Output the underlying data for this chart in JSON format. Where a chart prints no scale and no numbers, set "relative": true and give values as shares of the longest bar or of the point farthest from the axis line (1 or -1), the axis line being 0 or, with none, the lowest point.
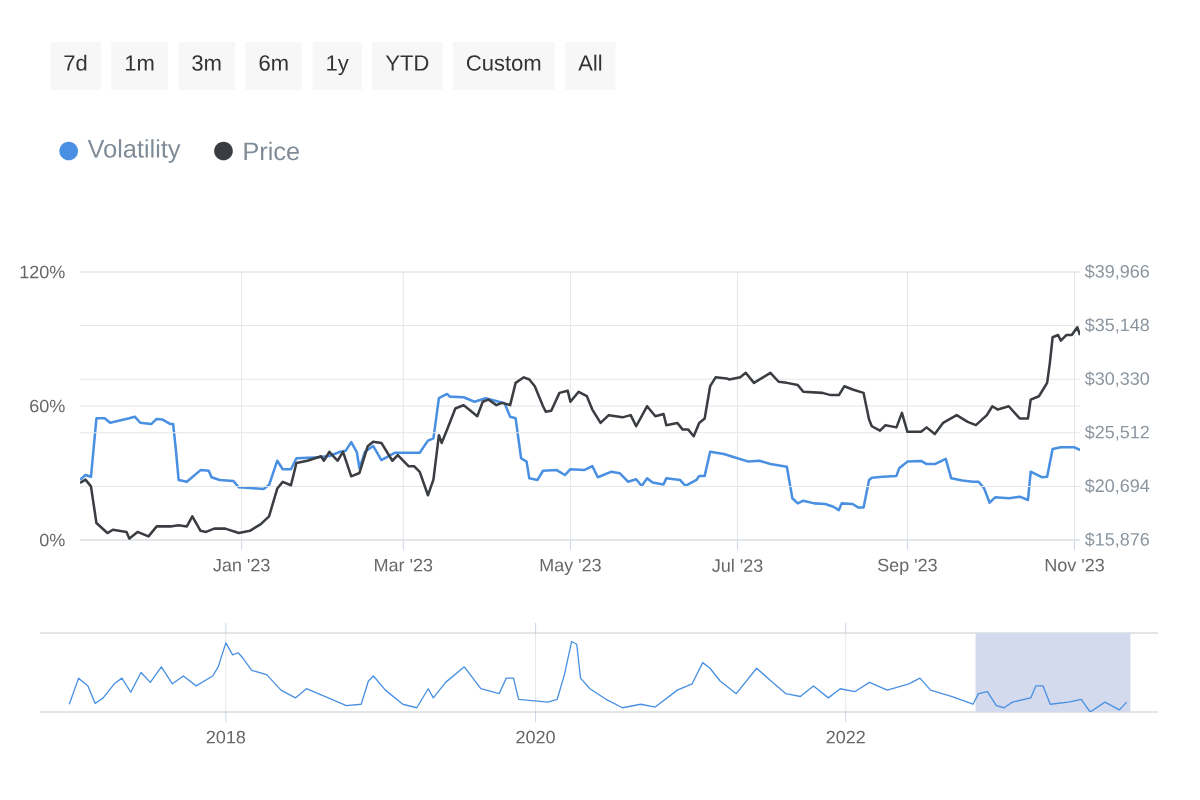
{
  "chart_data": [
    {
      "type": "line",
      "annotations": [
        "7d",
        "1m",
        "3m",
        "6m",
        "1y",
        "YTD",
        "Custom",
        "All"
      ],
      "legend": "top left",
      "grid": true,
      "xlim": [
        "2022-11-03",
        "2023-11-03"
      ],
      "xticks": [
        {
          "value": "2023-01-01",
          "label": "Jan '23"
        },
        {
          "value": "2023-03-01",
          "label": "Mar '23"
        },
        {
          "value": "2023-05-01",
          "label": "May '23"
        },
        {
          "value": "2023-07-01",
          "label": "Jul '23"
        },
        {
          "value": "2023-09-01",
          "label": "Sep '23"
        },
        {
          "value": "2023-11-01",
          "label": "Nov '23"
        }
      ],
      "ylim": [
        0,
        120
      ],
      "yticks": [
        {
          "value": 0,
          "label": "0%"
        },
        {
          "value": 60,
          "label": "60%"
        },
        {
          "value": 120,
          "label": "120%"
        }
      ],
      "y2lim": [
        15876,
        39966
      ],
      "y2ticks": [
        {
          "value": 15876,
          "label": "$15,876"
        },
        {
          "value": 20694,
          "label": "$20,694"
        },
        {
          "value": 25512,
          "label": "$25,512"
        },
        {
          "value": 30330,
          "label": "$30,330"
        },
        {
          "value": 35148,
          "label": "$35,148"
        },
        {
          "value": 39966,
          "label": "$39,966"
        }
      ],
      "series": [
        {
          "name": "Volatility",
          "color": "#4a90e2",
          "x": [
            "2022-11-03",
            "2022-11-05",
            "2022-11-07",
            "2022-11-09",
            "2022-11-12",
            "2022-11-14",
            "2022-11-21",
            "2022-11-23",
            "2022-11-25",
            "2022-11-29",
            "2022-12-01",
            "2022-12-03",
            "2022-12-06",
            "2022-12-07",
            "2022-12-08",
            "2022-12-09",
            "2022-12-12",
            "2022-12-17",
            "2022-12-20",
            "2022-12-21",
            "2022-12-24",
            "2022-12-29",
            "2022-12-31",
            "2023-01-04",
            "2023-01-09",
            "2023-01-11",
            "2023-01-14",
            "2023-01-16",
            "2023-01-19",
            "2023-01-21",
            "2023-01-29",
            "2023-02-02",
            "2023-02-06",
            "2023-02-08",
            "2023-02-10",
            "2023-02-12",
            "2023-02-13",
            "2023-02-15",
            "2023-02-18",
            "2023-02-21",
            "2023-02-26",
            "2023-03-07",
            "2023-03-10",
            "2023-03-12",
            "2023-03-14",
            "2023-03-17",
            "2023-03-18",
            "2023-03-23",
            "2023-03-27",
            "2023-03-31",
            "2023-04-07",
            "2023-04-09",
            "2023-04-11",
            "2023-04-13",
            "2023-04-15",
            "2023-04-16",
            "2023-04-19",
            "2023-04-21",
            "2023-04-26",
            "2023-04-29",
            "2023-05-01",
            "2023-05-06",
            "2023-05-09",
            "2023-05-11",
            "2023-05-16",
            "2023-05-19",
            "2023-05-22",
            "2023-05-25",
            "2023-05-27",
            "2023-05-29",
            "2023-05-31",
            "2023-06-04",
            "2023-06-05",
            "2023-06-10",
            "2023-06-12",
            "2023-06-16",
            "2023-06-17",
            "2023-06-19",
            "2023-06-21",
            "2023-06-26",
            "2023-07-01",
            "2023-07-05",
            "2023-07-09",
            "2023-07-13",
            "2023-07-19",
            "2023-07-21",
            "2023-07-23",
            "2023-07-25",
            "2023-07-29",
            "2023-08-02",
            "2023-08-05",
            "2023-08-07",
            "2023-08-08",
            "2023-08-12",
            "2023-08-14",
            "2023-08-16",
            "2023-08-18",
            "2023-08-19",
            "2023-08-23",
            "2023-08-28",
            "2023-08-29",
            "2023-09-01",
            "2023-09-06",
            "2023-09-08",
            "2023-09-11",
            "2023-09-15",
            "2023-09-17",
            "2023-09-21",
            "2023-09-25",
            "2023-09-27",
            "2023-09-29",
            "2023-10-01",
            "2023-10-03",
            "2023-10-08",
            "2023-10-12",
            "2023-10-15",
            "2023-10-16",
            "2023-10-20",
            "2023-10-22",
            "2023-10-24",
            "2023-10-27",
            "2023-11-01",
            "2023-11-03"
          ],
          "values": [
            26.9,
            29.1,
            28.3,
            54.5,
            54.5,
            52.5,
            54.5,
            55.2,
            52.5,
            51.9,
            54.2,
            54.0,
            51.9,
            51.9,
            40.3,
            26.9,
            26.1,
            31.3,
            31.0,
            28.1,
            26.9,
            26.4,
            23.6,
            23.3,
            22.8,
            24.6,
            35.5,
            31.7,
            31.7,
            36.6,
            37.0,
            37.6,
            39.5,
            40.0,
            43.8,
            39.5,
            32.1,
            39.5,
            42.1,
            35.8,
            39.1,
            39.1,
            44.5,
            45.5,
            63.5,
            65.4,
            64.2,
            63.9,
            61.9,
            63.5,
            61.2,
            55.2,
            54.5,
            36.6,
            35.1,
            27.6,
            26.9,
            31.0,
            31.3,
            29.1,
            31.7,
            31.3,
            33.1,
            28.1,
            30.6,
            29.9,
            26.1,
            27.2,
            24.2,
            27.6,
            25.7,
            24.9,
            27.6,
            26.9,
            24.2,
            26.9,
            28.7,
            28.7,
            39.5,
            38.5,
            36.6,
            35.1,
            35.5,
            34.0,
            32.8,
            18.7,
            16.4,
            17.6,
            16.4,
            16.1,
            14.9,
            13.4,
            16.4,
            16.1,
            14.6,
            14.6,
            26.9,
            27.9,
            28.3,
            28.7,
            32.1,
            35.1,
            35.4,
            34.0,
            34.0,
            36.3,
            27.6,
            26.6,
            26.1,
            26.1,
            23.1,
            16.7,
            19.1,
            18.7,
            19.4,
            17.9,
            30.6,
            28.1,
            28.3,
            40.7,
            41.5,
            41.5,
            40.3
          ]
        },
        {
          "name": "Price",
          "color": "#3a3d42",
          "axis": "y2",
          "x": [
            "2022-11-03",
            "2022-11-05",
            "2022-11-07",
            "2022-11-09",
            "2022-11-13",
            "2022-11-15",
            "2022-11-20",
            "2022-11-21",
            "2022-11-24",
            "2022-11-28",
            "2022-12-01",
            "2022-12-06",
            "2022-12-09",
            "2022-12-12",
            "2022-12-14",
            "2022-12-17",
            "2022-12-19",
            "2022-12-22",
            "2022-12-26",
            "2022-12-31",
            "2023-01-04",
            "2023-01-08",
            "2023-01-11",
            "2023-01-14",
            "2023-01-16",
            "2023-01-19",
            "2023-01-21",
            "2023-01-25",
            "2023-01-30",
            "2023-01-31",
            "2023-02-02",
            "2023-02-05",
            "2023-02-07",
            "2023-02-10",
            "2023-02-13",
            "2023-02-16",
            "2023-02-18",
            "2023-02-21",
            "2023-02-25",
            "2023-02-27",
            "2023-03-03",
            "2023-03-05",
            "2023-03-07",
            "2023-03-10",
            "2023-03-12",
            "2023-03-14",
            "2023-03-15",
            "2023-03-17",
            "2023-03-20",
            "2023-03-22",
            "2023-03-23",
            "2023-03-26",
            "2023-03-28",
            "2023-03-30",
            "2023-04-01",
            "2023-04-04",
            "2023-04-06",
            "2023-04-09",
            "2023-04-11",
            "2023-04-14",
            "2023-04-16",
            "2023-04-18",
            "2023-04-21",
            "2023-04-22",
            "2023-04-24",
            "2023-04-27",
            "2023-04-30",
            "2023-05-01",
            "2023-05-04",
            "2023-05-07",
            "2023-05-09",
            "2023-05-12",
            "2023-05-15",
            "2023-05-20",
            "2023-05-23",
            "2023-05-25",
            "2023-05-29",
            "2023-06-01",
            "2023-06-04",
            "2023-06-05",
            "2023-06-09",
            "2023-06-11",
            "2023-06-13",
            "2023-06-15",
            "2023-06-17",
            "2023-06-19",
            "2023-06-21",
            "2023-06-23",
            "2023-06-27",
            "2023-06-28",
            "2023-07-02",
            "2023-07-04",
            "2023-07-07",
            "2023-07-13",
            "2023-07-16",
            "2023-07-19",
            "2023-07-23",
            "2023-07-25",
            "2023-08-01",
            "2023-08-04",
            "2023-08-07",
            "2023-08-09",
            "2023-08-12",
            "2023-08-16",
            "2023-08-18",
            "2023-08-19",
            "2023-08-22",
            "2023-08-24",
            "2023-08-28",
            "2023-08-30",
            "2023-09-01",
            "2023-09-06",
            "2023-09-08",
            "2023-09-11",
            "2023-09-14",
            "2023-09-19",
            "2023-09-23",
            "2023-09-26",
            "2023-09-30",
            "2023-10-02",
            "2023-10-04",
            "2023-10-08",
            "2023-10-12",
            "2023-10-15",
            "2023-10-16",
            "2023-10-19",
            "2023-10-22",
            "2023-10-23",
            "2023-10-24",
            "2023-10-26",
            "2023-10-27",
            "2023-10-29",
            "2023-10-31",
            "2023-11-02",
            "2023-11-03"
          ],
          "values": [
            21000,
            21300,
            20700,
            17400,
            16500,
            16800,
            16600,
            16000,
            16600,
            16200,
            17100,
            17100,
            17200,
            17100,
            18000,
            16700,
            16600,
            16900,
            16900,
            16500,
            16700,
            17300,
            18000,
            20500,
            21100,
            20800,
            22800,
            23000,
            23400,
            23000,
            23800,
            23000,
            23800,
            21600,
            21900,
            24300,
            24700,
            24600,
            23000,
            23500,
            22500,
            22500,
            22000,
            19900,
            21300,
            25300,
            24600,
            25800,
            27700,
            27900,
            28000,
            27400,
            27000,
            28300,
            28500,
            28000,
            28200,
            28000,
            30000,
            30500,
            30300,
            29700,
            27900,
            27400,
            27500,
            29100,
            29300,
            28300,
            29200,
            28800,
            27600,
            26400,
            27100,
            26900,
            27100,
            26100,
            27900,
            27000,
            27200,
            26200,
            26400,
            25800,
            25800,
            25200,
            26400,
            26800,
            29700,
            30500,
            30400,
            30300,
            30500,
            30900,
            30000,
            30900,
            30100,
            30000,
            29800,
            29200,
            29100,
            28900,
            28900,
            29700,
            29400,
            29100,
            26700,
            26100,
            25700,
            26200,
            26000,
            27300,
            25600,
            25600,
            26000,
            25400,
            26400,
            27100,
            26500,
            26200,
            27100,
            27900,
            27600,
            27900,
            26800,
            26800,
            28500,
            28800,
            30000,
            31800,
            34100,
            34300,
            33800,
            34300,
            34300,
            35000,
            34300
          ]
        }
      ]
    },
    {
      "type": "line",
      "relative": true,
      "grid": "x",
      "xlim": [
        "2016-10-20",
        "2024-01-07"
      ],
      "xticks": [
        {
          "value": "2018-01-01",
          "label": "2018"
        },
        {
          "value": "2020-01-01",
          "label": "2020"
        },
        {
          "value": "2022-01-01",
          "label": "2022"
        }
      ],
      "bands": [
        {
          "axis": "x",
          "from": "2022-11-03",
          "to": "2023-11-03",
          "color": "#d3daed"
        }
      ],
      "x": [
        "2016-12-28",
        "2017-01-19",
        "2017-02-10",
        "2017-02-27",
        "2017-03-18",
        "2017-04-13",
        "2017-05-01",
        "2017-05-22",
        "2017-06-15",
        "2017-07-07",
        "2017-08-02",
        "2017-08-28",
        "2017-09-23",
        "2017-10-23",
        "2017-12-01",
        "2017-12-14",
        "2018-01-01",
        "2018-01-17",
        "2018-01-30",
        "2018-02-08",
        "2018-03-03",
        "2018-04-07",
        "2018-05-11",
        "2018-06-14",
        "2018-07-10",
        "2018-08-22",
        "2018-10-12",
        "2018-11-16",
        "2018-12-03",
        "2018-12-15",
        "2019-01-12",
        "2019-02-22",
        "2019-03-27",
        "2019-04-23",
        "2019-05-05",
        "2019-06-03",
        "2019-07-17",
        "2019-08-25",
        "2019-10-07",
        "2019-10-24",
        "2019-11-10",
        "2019-11-22",
        "2020-01-30",
        "2020-02-21",
        "2020-03-09",
        "2020-03-26",
        "2020-04-07",
        "2020-04-16",
        "2020-05-08",
        "2020-06-15",
        "2020-07-24",
        "2020-09-05",
        "2020-10-09",
        "2020-11-30",
        "2021-01-04",
        "2021-01-29",
        "2021-02-15",
        "2021-03-11",
        "2021-04-18",
        "2021-06-05",
        "2021-07-09",
        "2021-08-13",
        "2021-09-16",
        "2021-10-17",
        "2021-11-21",
        "2021-12-19",
        "2022-01-23",
        "2022-02-26",
        "2022-04-09",
        "2022-05-30",
        "2022-06-25",
        "2022-07-20",
        "2022-09-07",
        "2022-10-28",
        "2022-11-10",
        "2022-12-01",
        "2022-12-22",
        "2023-01-09",
        "2023-01-29",
        "2023-03-13",
        "2023-03-25",
        "2023-04-11",
        "2023-04-28",
        "2023-06-10",
        "2023-07-10",
        "2023-07-31",
        "2023-09-04",
        "2023-10-08",
        "2023-10-25"
      ],
      "series": [
        {
          "color": "#4a90e2",
          "values": [
            0.11,
            0.48,
            0.37,
            0.12,
            0.2,
            0.4,
            0.48,
            0.28,
            0.56,
            0.42,
            0.64,
            0.4,
            0.51,
            0.37,
            0.51,
            0.64,
            0.98,
            0.81,
            0.84,
            0.78,
            0.59,
            0.53,
            0.31,
            0.2,
            0.33,
            0.22,
            0.09,
            0.11,
            0.44,
            0.51,
            0.31,
            0.11,
            0.06,
            0.33,
            0.2,
            0.42,
            0.64,
            0.33,
            0.26,
            0.48,
            0.48,
            0.18,
            0.14,
            0.18,
            0.53,
            1.0,
            0.96,
            0.48,
            0.33,
            0.18,
            0.06,
            0.11,
            0.07,
            0.31,
            0.4,
            0.7,
            0.62,
            0.44,
            0.26,
            0.62,
            0.44,
            0.26,
            0.22,
            0.37,
            0.2,
            0.33,
            0.29,
            0.42,
            0.31,
            0.4,
            0.48,
            0.31,
            0.22,
            0.11,
            0.26,
            0.29,
            0.09,
            0.06,
            0.14,
            0.2,
            0.37,
            0.37,
            0.11,
            0.14,
            0.18,
            0.0,
            0.14,
            0.03,
            0.14
          ]
        }
      ]
    }
  ]
}
